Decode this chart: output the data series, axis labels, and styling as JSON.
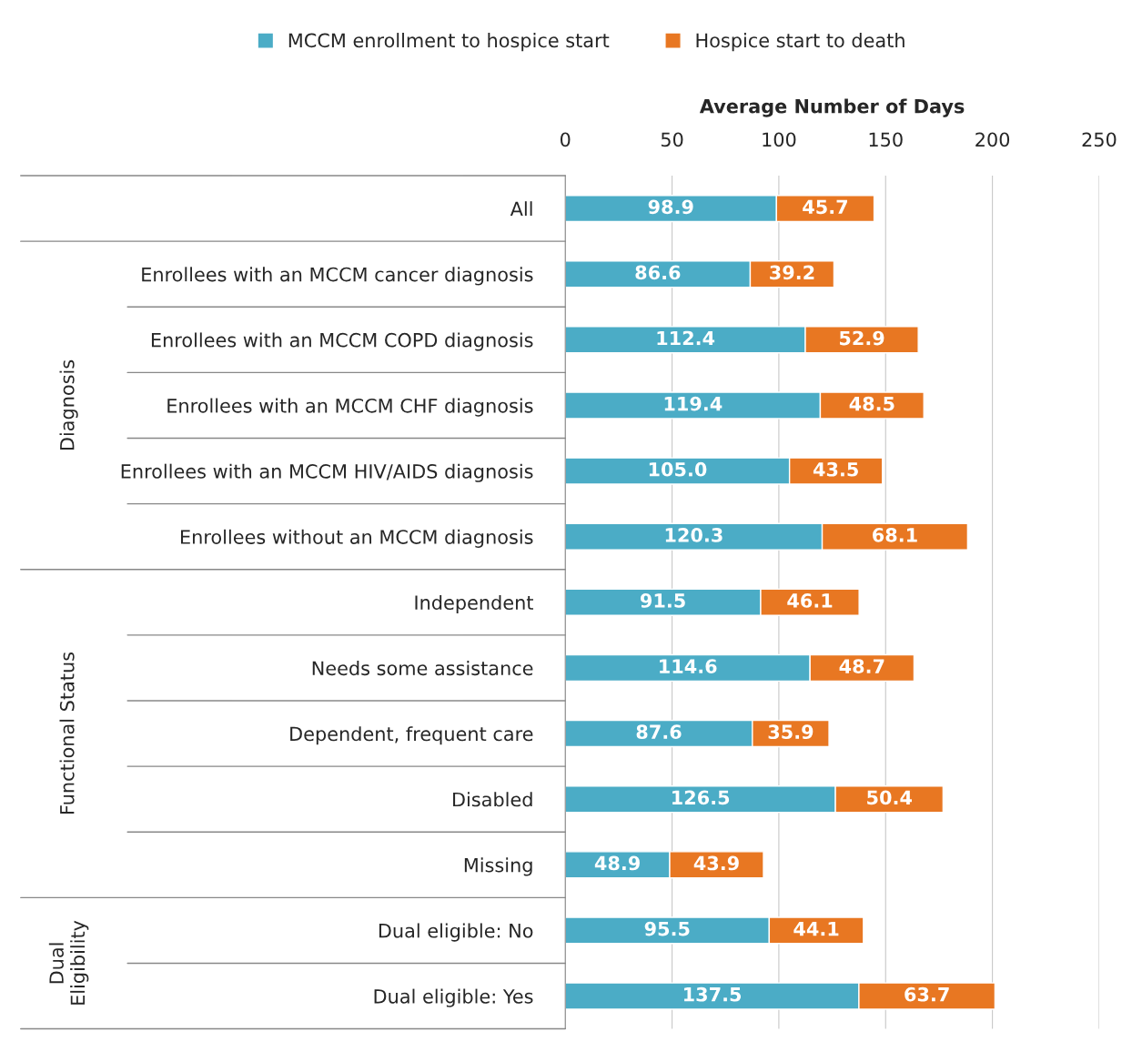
{
  "chart_data": {
    "type": "bar",
    "orientation": "horizontal",
    "stacked": true,
    "xlabel": "Average Number of Days",
    "categories": [
      "All",
      "Enrollees with an MCCM cancer diagnosis",
      "Enrollees with an MCCM COPD diagnosis",
      "Enrollees with an MCCM CHF diagnosis",
      "Enrollees with an MCCM HIV/AIDS diagnosis",
      "Enrollees without an MCCM diagnosis",
      "Independent",
      "Needs some assistance",
      "Dependent, frequent care",
      "Disabled",
      "Missing",
      "Dual eligible: No",
      "Dual eligible: Yes"
    ],
    "series": [
      {
        "name": "MCCM enrollment to hospice start",
        "color": "#4bacc6",
        "values": [
          98.9,
          86.6,
          112.4,
          119.4,
          105.0,
          120.3,
          91.5,
          114.6,
          87.6,
          126.5,
          48.9,
          95.5,
          137.5
        ]
      },
      {
        "name": "Hospice start to death",
        "color": "#e87722",
        "values": [
          45.7,
          39.2,
          52.9,
          48.5,
          43.5,
          68.1,
          46.1,
          48.7,
          35.9,
          50.4,
          43.9,
          44.1,
          63.7
        ]
      }
    ],
    "value_labels": [
      [
        "98.9",
        "86.6",
        "112.4",
        "119.4",
        "105.0",
        "120.3",
        "91.5",
        "114.6",
        "87.6",
        "126.5",
        "48.9",
        "95.5",
        "137.5"
      ],
      [
        "45.7",
        "39.2",
        "52.9",
        "48.5",
        "43.5",
        "68.1",
        "46.1",
        "48.7",
        "35.9",
        "50.4",
        "43.9",
        "44.1",
        "63.7"
      ]
    ],
    "annotations": [
      "Diagnosis",
      "Functional Status",
      "Dual\nEligibility"
    ],
    "xlim": [
      0,
      250
    ],
    "xticks": [
      0,
      50,
      100,
      150,
      200,
      250
    ],
    "grid": "x",
    "legend": "top"
  }
}
